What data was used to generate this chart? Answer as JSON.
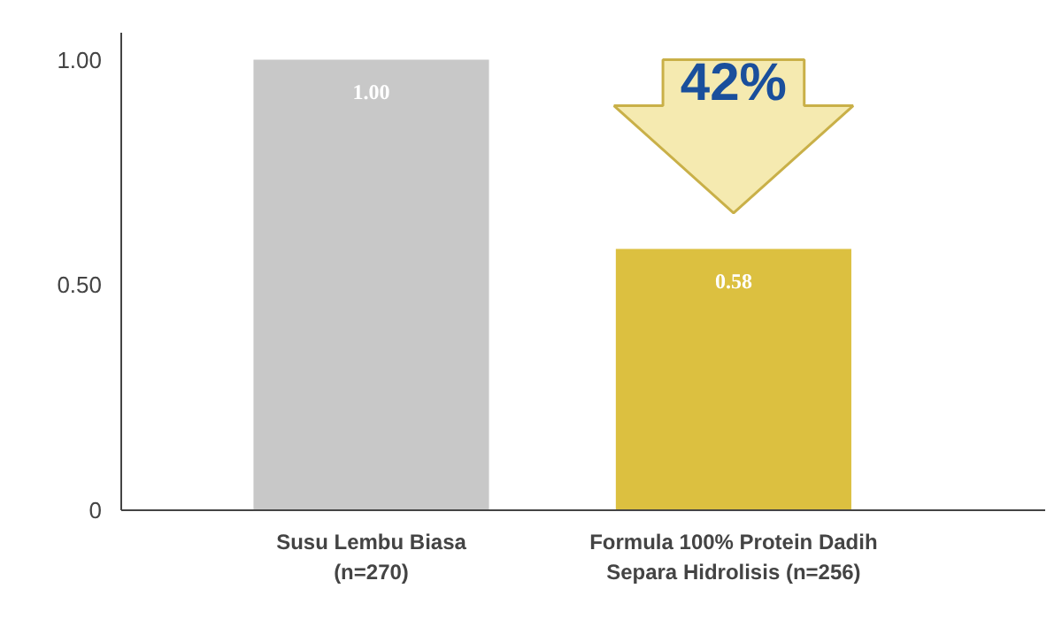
{
  "chart_data": {
    "type": "bar",
    "categories": [
      "Susu Lembu Biasa\n(n=270)",
      "Formula 100% Protein Dadih\nSepara Hidrolisis (n=256)"
    ],
    "values": [
      1.0,
      0.58
    ],
    "colors": [
      "#c8c8c8",
      "#dcc040"
    ],
    "value_labels": [
      "1.00",
      "0.58"
    ],
    "ylim": [
      0,
      1.06
    ],
    "yticks": [
      {
        "value": 0,
        "label": "0"
      },
      {
        "value": 0.5,
        "label": "0.50"
      },
      {
        "value": 1,
        "label": "1.00"
      }
    ],
    "grid": false,
    "annotations": [
      "42%"
    ]
  }
}
